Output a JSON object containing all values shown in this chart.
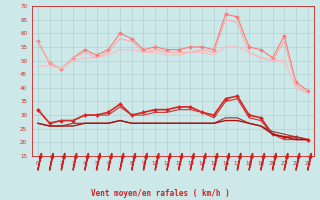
{
  "xlabel": "Vent moyen/en rafales ( km/h )",
  "xlim": [
    -0.5,
    23.5
  ],
  "ylim": [
    15,
    70
  ],
  "yticks": [
    15,
    20,
    25,
    30,
    35,
    40,
    45,
    50,
    55,
    60,
    65,
    70
  ],
  "xticks": [
    0,
    1,
    2,
    3,
    4,
    5,
    6,
    7,
    8,
    9,
    10,
    11,
    12,
    13,
    14,
    15,
    16,
    17,
    18,
    19,
    20,
    21,
    22,
    23
  ],
  "background_color": "#cce8e8",
  "grid_color": "#aacccc",
  "lines": [
    {
      "color": "#ff7777",
      "linewidth": 0.8,
      "marker": "D",
      "markersize": 2.0,
      "values": [
        57,
        49,
        47,
        51,
        54,
        52,
        54,
        60,
        58,
        54,
        55,
        54,
        54,
        55,
        55,
        54,
        67,
        66,
        55,
        54,
        51,
        59,
        42,
        39
      ]
    },
    {
      "color": "#ffaaaa",
      "linewidth": 0.8,
      "marker": null,
      "markersize": 0,
      "values": [
        57,
        49,
        47,
        51,
        53,
        51,
        53,
        58,
        57,
        53,
        54,
        53,
        53,
        53,
        54,
        53,
        65,
        64,
        53,
        51,
        50,
        57,
        41,
        38
      ]
    },
    {
      "color": "#ffbbbb",
      "linewidth": 0.8,
      "marker": null,
      "markersize": 0,
      "values": [
        48,
        48,
        47,
        50,
        51,
        51,
        52,
        54,
        54,
        53,
        53,
        52,
        52,
        53,
        53,
        52,
        55,
        55,
        53,
        51,
        50,
        50,
        40,
        38
      ]
    },
    {
      "color": "#dd2222",
      "linewidth": 1.2,
      "marker": "D",
      "markersize": 2.0,
      "values": [
        32,
        27,
        28,
        28,
        30,
        30,
        31,
        34,
        30,
        31,
        32,
        32,
        33,
        33,
        31,
        30,
        36,
        37,
        30,
        29,
        23,
        22,
        22,
        21
      ]
    },
    {
      "color": "#cc3333",
      "linewidth": 0.8,
      "marker": null,
      "markersize": 0,
      "values": [
        32,
        27,
        28,
        28,
        30,
        30,
        30,
        33,
        30,
        30,
        31,
        31,
        32,
        32,
        31,
        29,
        35,
        36,
        29,
        28,
        23,
        21,
        21,
        21
      ]
    },
    {
      "color": "#993333",
      "linewidth": 0.8,
      "marker": null,
      "markersize": 0,
      "values": [
        27,
        26,
        26,
        27,
        27,
        27,
        27,
        28,
        27,
        27,
        27,
        27,
        27,
        27,
        27,
        27,
        29,
        29,
        27,
        26,
        24,
        23,
        22,
        21
      ]
    },
    {
      "color": "#aa1111",
      "linewidth": 1.0,
      "marker": null,
      "markersize": 0,
      "values": [
        27,
        26,
        26,
        26,
        27,
        27,
        27,
        28,
        27,
        27,
        27,
        27,
        27,
        27,
        27,
        27,
        28,
        28,
        27,
        26,
        23,
        22,
        21,
        21
      ]
    }
  ]
}
